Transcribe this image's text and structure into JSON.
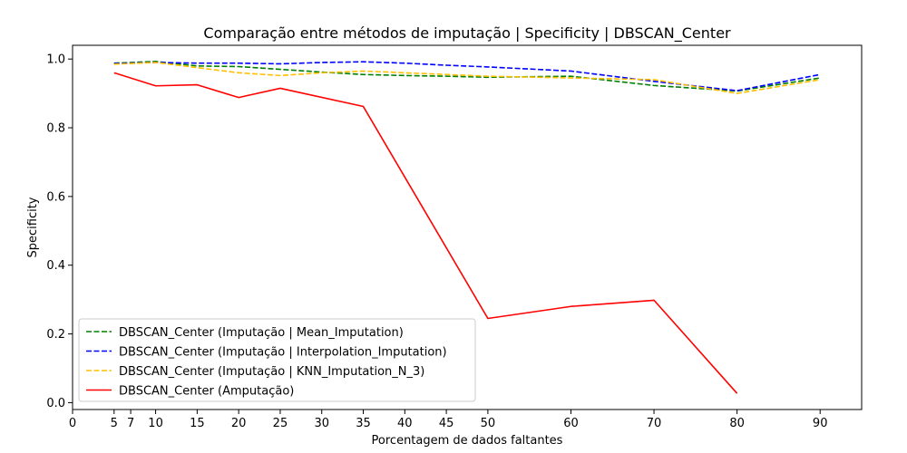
{
  "chart_data": {
    "type": "line",
    "title": "Comparação entre métodos de imputação | Specificity | DBSCAN_Center",
    "xlabel": "Porcentagem de dados faltantes",
    "ylabel": "Specificity",
    "xlim": [
      0,
      95
    ],
    "ylim": [
      -0.02,
      1.04
    ],
    "xticks": [
      0,
      5,
      7,
      10,
      15,
      20,
      25,
      30,
      35,
      40,
      45,
      50,
      60,
      70,
      80,
      90
    ],
    "yticks": [
      0.0,
      0.2,
      0.4,
      0.6,
      0.8,
      1.0
    ],
    "ytick_labels": [
      "0.0",
      "0.2",
      "0.4",
      "0.6",
      "0.8",
      "1.0"
    ],
    "grid": false,
    "legend_position": "lower-left",
    "series": [
      {
        "name": "DBSCAN_Center (Imputação | Mean_Imputation)",
        "color": "#008000",
        "dash": "dashed",
        "x": [
          5,
          10,
          15,
          20,
          25,
          30,
          35,
          40,
          45,
          50,
          60,
          70,
          80,
          90
        ],
        "values": [
          0.988,
          0.993,
          0.98,
          0.978,
          0.97,
          0.962,
          0.955,
          0.952,
          0.95,
          0.947,
          0.95,
          0.923,
          0.907,
          0.945
        ]
      },
      {
        "name": "DBSCAN_Center (Imputação | Interpolation_Imputation)",
        "color": "#0000ff",
        "dash": "dashed",
        "x": [
          5,
          10,
          15,
          20,
          25,
          30,
          35,
          40,
          45,
          50,
          60,
          70,
          80,
          90
        ],
        "values": [
          0.987,
          0.99,
          0.988,
          0.988,
          0.986,
          0.99,
          0.992,
          0.988,
          0.982,
          0.977,
          0.965,
          0.935,
          0.908,
          0.955
        ]
      },
      {
        "name": "DBSCAN_Center (Imputação | KNN_Imputation_N_3)",
        "color": "#ffbf00",
        "dash": "dashed",
        "x": [
          5,
          10,
          15,
          20,
          25,
          30,
          35,
          40,
          45,
          50,
          60,
          70,
          80,
          90
        ],
        "values": [
          0.985,
          0.99,
          0.975,
          0.96,
          0.952,
          0.96,
          0.965,
          0.96,
          0.955,
          0.95,
          0.945,
          0.94,
          0.9,
          0.94
        ]
      },
      {
        "name": "DBSCAN_Center (Amputação)",
        "color": "#ff0000",
        "dash": "solid",
        "x": [
          5,
          10,
          15,
          20,
          25,
          35,
          50,
          60,
          70,
          80
        ],
        "values": [
          0.96,
          0.922,
          0.925,
          0.888,
          0.915,
          0.862,
          0.245,
          0.28,
          0.298,
          0.027
        ]
      }
    ]
  }
}
